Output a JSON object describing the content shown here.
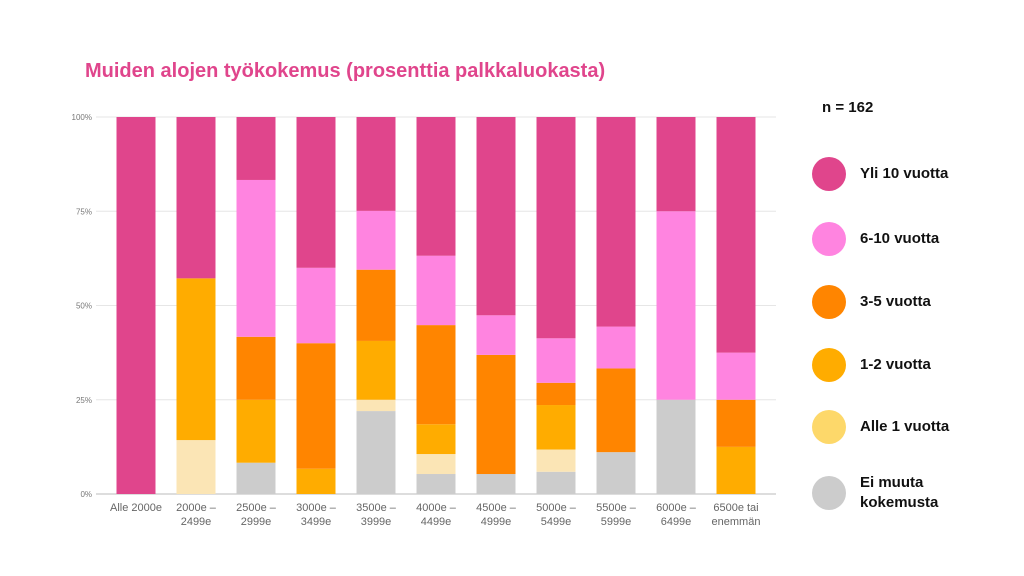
{
  "chart_data": {
    "type": "bar",
    "stacked": true,
    "title": "Muiden alojen työkokemus (prosenttia palkkaluokasta)",
    "note": "n = 162",
    "ylim": [
      0,
      100
    ],
    "yticks": [
      "0%",
      "25%",
      "50%",
      "75%",
      "100%"
    ],
    "grid": true,
    "legend_position": "right",
    "categories": [
      [
        "Alle 2000e"
      ],
      [
        "2000e –",
        "2499e"
      ],
      [
        "2500e –",
        "2999e"
      ],
      [
        "3000e –",
        "3499e"
      ],
      [
        "3500e –",
        "3999e"
      ],
      [
        "4000e –",
        "4499e"
      ],
      [
        "4500e –",
        "4999e"
      ],
      [
        "5000e –",
        "5499e"
      ],
      [
        "5500e –",
        "5999e"
      ],
      [
        "6000e –",
        "6499e"
      ],
      [
        "6500e tai",
        "enemmän"
      ]
    ],
    "series": [
      {
        "name": "Ei muuta kokemusta",
        "color": "#cccccc",
        "values": [
          0,
          0,
          8.3,
          0,
          22,
          5.3,
          5.3,
          5.9,
          11.1,
          25,
          0
        ]
      },
      {
        "name": "Alle 1 vuotta",
        "color": "#fbe5b5",
        "values": [
          0,
          14.3,
          0,
          0,
          3,
          5.3,
          0,
          5.9,
          0,
          0,
          0
        ]
      },
      {
        "name": "1-2 vuotta",
        "color": "#ffac00",
        "values": [
          0,
          42.9,
          16.7,
          6.7,
          15.6,
          7.9,
          0,
          11.8,
          0,
          0,
          12.5
        ]
      },
      {
        "name": "3-5 vuotta",
        "color": "#ff8500",
        "values": [
          0,
          0,
          16.7,
          33.3,
          18.9,
          26.3,
          31.6,
          5.9,
          22.2,
          0,
          12.5
        ]
      },
      {
        "name": "6-10 vuotta",
        "color": "#ff84e0",
        "values": [
          0,
          0,
          41.6,
          20,
          15.6,
          18.4,
          10.5,
          11.8,
          11.1,
          50,
          12.5
        ]
      },
      {
        "name": "Yli 10 vuotta",
        "color": "#e0458c",
        "values": [
          100,
          42.8,
          16.7,
          40,
          24.9,
          36.8,
          52.6,
          58.7,
          55.6,
          25,
          62.5
        ]
      }
    ]
  },
  "legend": [
    {
      "label": "Yli 10 vuotta",
      "color": "#e0458c"
    },
    {
      "label": "6-10 vuotta",
      "color": "#ff84e0"
    },
    {
      "label": "3-5 vuotta",
      "color": "#ff8500"
    },
    {
      "label": "1-2 vuotta",
      "color": "#ffac00"
    },
    {
      "label": "Alle 1 vuotta",
      "color": "#fdd86a"
    },
    {
      "label": "Ei muuta kokemusta",
      "color": "#cccccc"
    }
  ]
}
